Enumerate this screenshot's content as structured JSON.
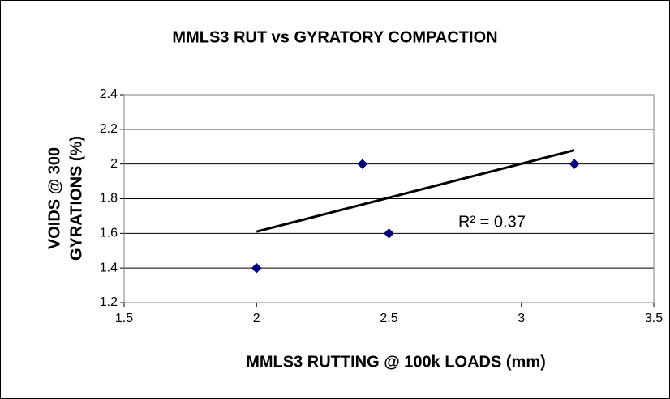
{
  "chart_data": {
    "type": "scatter",
    "title": "MMLS3 RUT vs GYRATORY COMPACTION",
    "x_label": "MMLS3 RUTTING @ 100k LOADS (mm)",
    "y_label": [
      "VOIDS @ 300",
      "GYRATIONS (%)"
    ],
    "annotation": "R² = 0.37",
    "series": [
      {
        "color": "#000080",
        "x": [
          2,
          2.4,
          2.5,
          3.2
        ],
        "values": [
          1.4,
          2.0,
          1.6,
          2.0
        ]
      }
    ],
    "trendline": {
      "color": "#000000",
      "x": [
        2,
        3.2
      ],
      "values": [
        1.61,
        2.08
      ]
    },
    "xlim": [
      1.5,
      3.5
    ],
    "xticks": [
      1.5,
      2,
      2.5,
      3,
      3.5
    ],
    "ylim": [
      1.2,
      2.4
    ],
    "yticks": [
      1.2,
      1.4,
      1.6,
      1.8,
      2,
      2.2,
      2.4
    ],
    "grid": true
  }
}
